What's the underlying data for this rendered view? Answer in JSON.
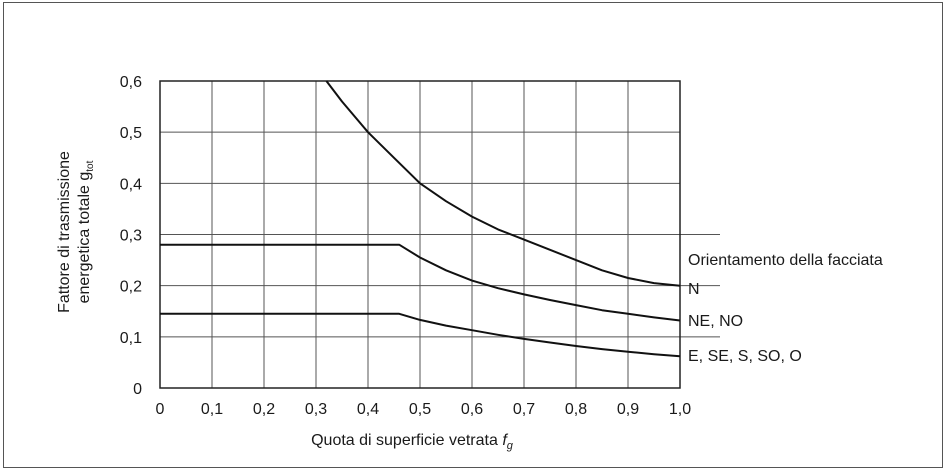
{
  "chart_data": {
    "type": "line",
    "title": "",
    "xlabel": {
      "main": "Quota di superficie vetrata ",
      "italic": "f",
      "sub": "g"
    },
    "ylabel": {
      "line1": "Fattore di trasmissione",
      "line2": "energetica totale g",
      "sub": "tot"
    },
    "xlim": [
      0,
      1.0
    ],
    "ylim": [
      0,
      0.6
    ],
    "x_ticks": [
      0,
      0.1,
      0.2,
      0.3,
      0.4,
      0.5,
      0.6,
      0.7,
      0.8,
      0.9,
      1.0
    ],
    "x_tick_labels": [
      "0",
      "0,1",
      "0,2",
      "0,3",
      "0,4",
      "0,5",
      "0,6",
      "0,7",
      "0,8",
      "0,9",
      "1,0"
    ],
    "y_ticks": [
      0,
      0.1,
      0.2,
      0.3,
      0.4,
      0.5,
      0.6
    ],
    "y_tick_labels": [
      "0",
      "0,1",
      "0,2",
      "0,3",
      "0,4",
      "0,5",
      "0,6"
    ],
    "grid": true,
    "legend_title": "Orientamento della facciata",
    "series": [
      {
        "name": "N",
        "x": [
          0.32,
          0.35,
          0.4,
          0.45,
          0.5,
          0.55,
          0.6,
          0.65,
          0.7,
          0.75,
          0.8,
          0.85,
          0.9,
          0.95,
          1.0
        ],
        "y": [
          0.6,
          0.56,
          0.5,
          0.45,
          0.4,
          0.365,
          0.335,
          0.31,
          0.29,
          0.27,
          0.25,
          0.23,
          0.215,
          0.205,
          0.2
        ]
      },
      {
        "name": "NE, NO",
        "x": [
          0,
          0.46,
          0.5,
          0.55,
          0.6,
          0.65,
          0.7,
          0.75,
          0.8,
          0.85,
          0.9,
          0.95,
          1.0
        ],
        "y": [
          0.28,
          0.28,
          0.255,
          0.23,
          0.21,
          0.195,
          0.183,
          0.172,
          0.162,
          0.152,
          0.145,
          0.138,
          0.132
        ]
      },
      {
        "name": "E, SE, S, SO, O",
        "x": [
          0,
          0.46,
          0.5,
          0.55,
          0.6,
          0.65,
          0.7,
          0.75,
          0.8,
          0.85,
          0.9,
          0.95,
          1.0
        ],
        "y": [
          0.145,
          0.145,
          0.133,
          0.122,
          0.113,
          0.104,
          0.096,
          0.089,
          0.082,
          0.076,
          0.071,
          0.066,
          0.062
        ]
      }
    ]
  }
}
